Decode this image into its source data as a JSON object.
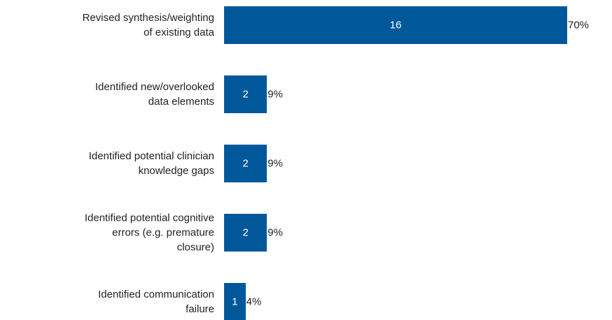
{
  "chart_data": {
    "type": "bar",
    "orientation": "horizontal",
    "categories": [
      "Revised synthesis/weighting\nof existing data",
      "Identified new/overlooked\ndata elements",
      "Identified potential clinician\nknowledge gaps",
      "Identified potential cognitive\nerrors (e.g. premature\nclosure)",
      "Identified communication\nfailure"
    ],
    "values": [
      16,
      2,
      2,
      2,
      1
    ],
    "percents": [
      70,
      9,
      9,
      9,
      4
    ],
    "percent_labels": [
      "70%",
      "9%",
      "9%",
      "9%",
      "4%"
    ],
    "color": "#00589b",
    "xlim": [
      0,
      16
    ]
  }
}
